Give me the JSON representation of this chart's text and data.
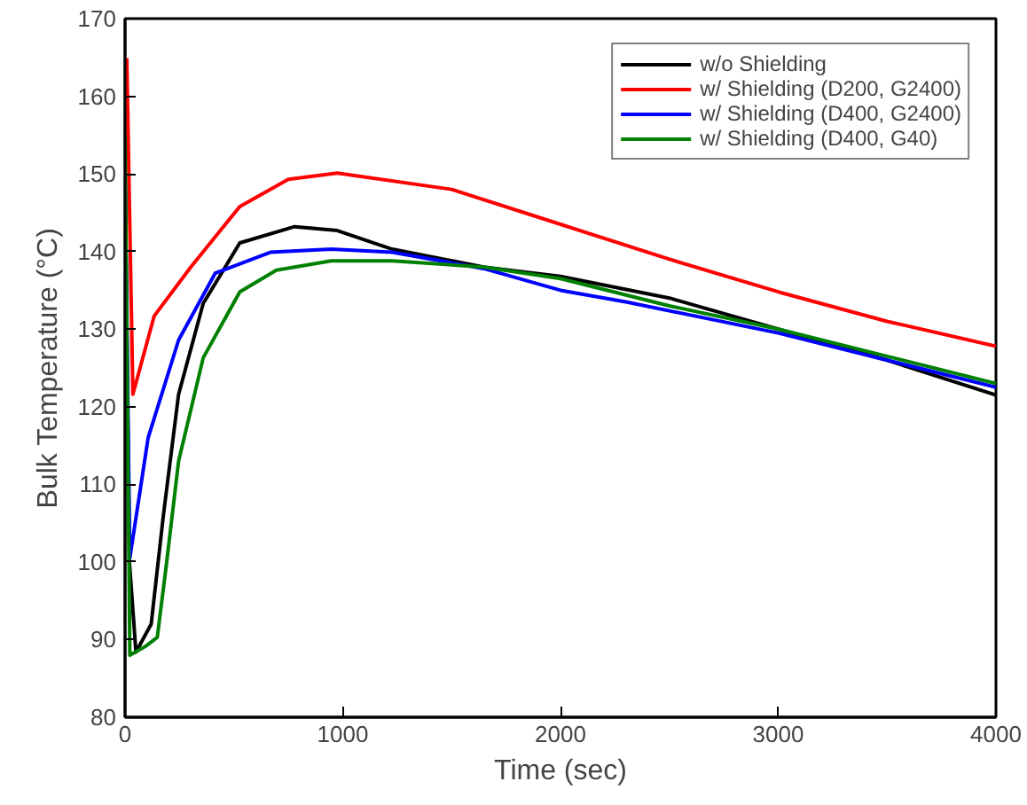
{
  "chart_data": {
    "type": "line",
    "xlabel": "Time (sec)",
    "ylabel": "Bulk Temperature (°C)",
    "xlim": [
      0,
      4000
    ],
    "ylim": [
      80,
      170
    ],
    "xticks": [
      0,
      1000,
      2000,
      3000,
      4000
    ],
    "yticks": [
      80,
      90,
      100,
      110,
      120,
      130,
      140,
      150,
      160,
      170
    ],
    "grid": false,
    "legend": "top right",
    "line_style": "solid",
    "marker": "none",
    "series": [
      {
        "name": "w/o Shielding",
        "color": "#000000",
        "x": [
          0,
          20,
          50,
          120,
          176,
          246,
          359,
          527,
          779,
          975,
          1227,
          1647,
          2000,
          2500,
          3000,
          3500,
          4000
        ],
        "values": [
          150,
          100,
          88.4,
          92,
          106,
          121.6,
          133.3,
          141.1,
          143.2,
          142.7,
          140.3,
          138,
          136.8,
          134,
          130,
          126,
          121.5
        ]
      },
      {
        "name": "w/ Shielding (D200, G2400)",
        "color": "#ff0000",
        "x": [
          8,
          36,
          134,
          302,
          527,
          750,
          975,
          1500,
          2000,
          2500,
          3000,
          3500,
          4000
        ],
        "values": [
          164.9,
          121.6,
          131.7,
          138,
          145.8,
          149.3,
          150.1,
          148,
          143.5,
          139,
          134.8,
          131,
          127.8
        ]
      },
      {
        "name": "w/ Shielding (D400, G2400)",
        "color": "#0000ff",
        "x": [
          0,
          22,
          106,
          246,
          414,
          667,
          947,
          1227,
          1647,
          2000,
          2300,
          3000,
          3500,
          4000
        ],
        "values": [
          150,
          100.5,
          116,
          128.6,
          137.2,
          139.9,
          140.3,
          139.9,
          137.8,
          135,
          133.5,
          129.5,
          126,
          122.5
        ]
      },
      {
        "name": "w/ Shielding (D400, G40)",
        "color": "#008000",
        "x": [
          0,
          22,
          92,
          148,
          190,
          246,
          359,
          527,
          695,
          947,
          1227,
          1647,
          2000,
          2500,
          3000,
          3500,
          4000
        ],
        "values": [
          154.8,
          88,
          89.1,
          90.3,
          99.7,
          113,
          126.3,
          134.8,
          137.6,
          138.8,
          138.8,
          138,
          136.5,
          133,
          130,
          126.5,
          123
        ]
      }
    ]
  }
}
